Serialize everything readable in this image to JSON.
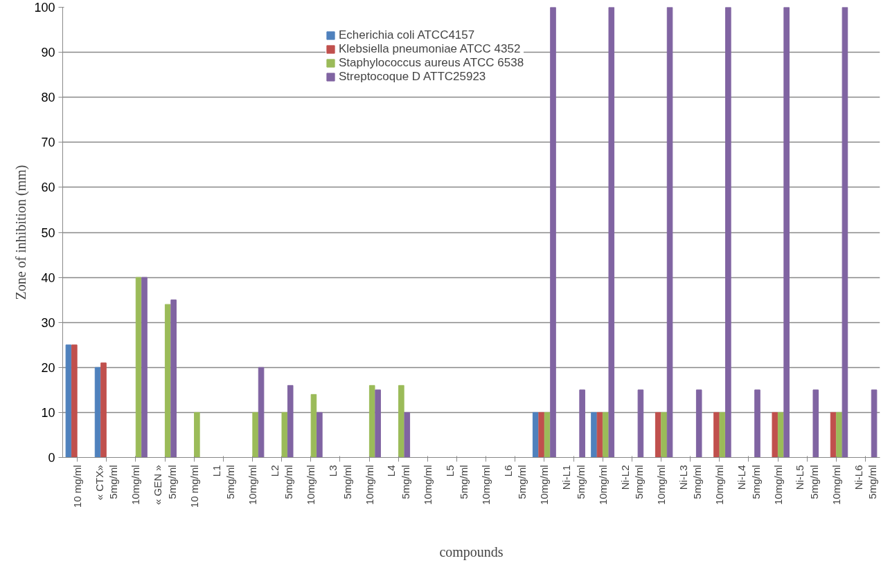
{
  "chart_data": {
    "type": "bar",
    "xlabel": "compounds",
    "ylabel": "Zone of inhibition (mm)",
    "categories": [
      "10 mg/ml",
      "« CTX»\n5mg/ml",
      "10mg/ml",
      "« GEN »\n5mg/ml",
      "10 mg/ml",
      "L1\n5mg/ml",
      "10mg/ml",
      "L2\n5mg/ml",
      "10mg/ml",
      "L3\n5mg/ml",
      "10mg/ml",
      "L4\n5mg/ml",
      "10mg/ml",
      "L5\n5mg/ml",
      "10mg/ml",
      "L6\n5mg/ml",
      "10mg/ml",
      "Ni-L1\n5mg/ml",
      "10mg/ml",
      "Ni-L2\n5mg/ml",
      "10mg/ml",
      "Ni-L3\n5mg/ml",
      "10mg/ml",
      "Ni-L4\n5mg/ml",
      "10mg/ml",
      "Ni-L5\n5mg/ml",
      "10mg/ml",
      "Ni-L6\n5mg/ml"
    ],
    "series": [
      {
        "name": "Echerichia coli ATCC4157",
        "color": "#4f81bd",
        "values": [
          25,
          20,
          0,
          0,
          0,
          0,
          0,
          0,
          0,
          0,
          0,
          0,
          0,
          0,
          0,
          0,
          10,
          0,
          10,
          0,
          0,
          0,
          0,
          0,
          0,
          0,
          0,
          0
        ]
      },
      {
        "name": "Klebsiella pneumoniae ATCC 4352",
        "color": "#c0504d",
        "values": [
          25,
          21,
          0,
          0,
          0,
          0,
          0,
          0,
          0,
          0,
          0,
          0,
          0,
          0,
          0,
          0,
          10,
          0,
          10,
          0,
          10,
          0,
          10,
          0,
          10,
          0,
          10,
          0
        ]
      },
      {
        "name": "Staphylococcus aureus ATCC 6538",
        "color": "#9bbb59",
        "values": [
          0,
          0,
          40,
          34,
          10,
          0,
          10,
          10,
          14,
          0,
          16,
          16,
          0,
          0,
          0,
          0,
          10,
          0,
          10,
          0,
          10,
          0,
          10,
          0,
          10,
          0,
          10,
          0
        ]
      },
      {
        "name": "Streptocoque D ATTC25923",
        "color": "#8064a2",
        "values": [
          0,
          0,
          40,
          35,
          0,
          0,
          20,
          16,
          10,
          0,
          15,
          10,
          0,
          0,
          0,
          0,
          100,
          15,
          100,
          15,
          100,
          15,
          100,
          15,
          100,
          15,
          100,
          15
        ]
      }
    ],
    "ylim": [
      0,
      100
    ],
    "yticks": [
      0,
      10,
      20,
      30,
      40,
      50,
      60,
      70,
      80,
      90,
      100
    ],
    "grid": "y",
    "legend": "top"
  }
}
